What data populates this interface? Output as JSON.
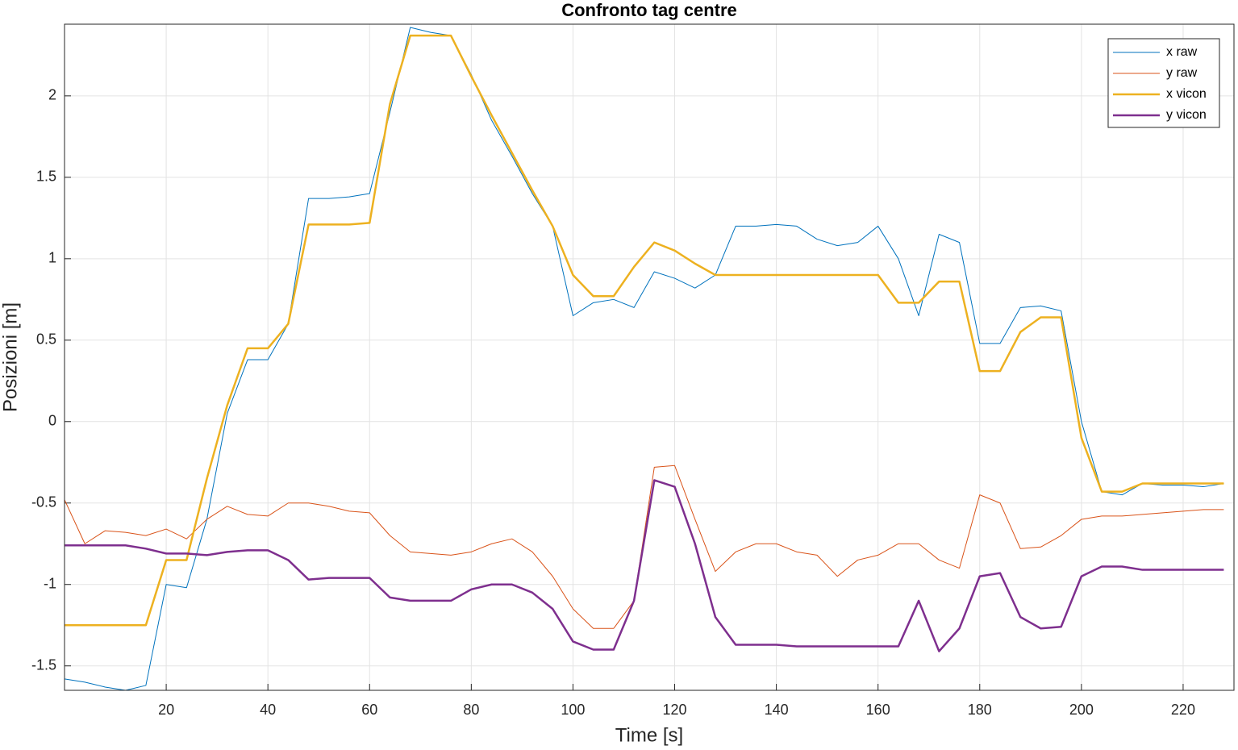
{
  "chart_data": {
    "type": "line",
    "title": "Confronto tag centre",
    "xlabel": "Time [s]",
    "ylabel": "Posizioni [m]",
    "x": [
      0,
      4,
      8,
      12,
      16,
      20,
      24,
      28,
      32,
      36,
      40,
      44,
      48,
      52,
      56,
      60,
      64,
      68,
      72,
      76,
      80,
      84,
      88,
      92,
      96,
      100,
      104,
      108,
      112,
      116,
      120,
      124,
      128,
      132,
      136,
      140,
      144,
      148,
      152,
      156,
      160,
      164,
      168,
      172,
      176,
      180,
      184,
      188,
      192,
      196,
      200,
      204,
      208,
      212,
      216,
      220,
      224,
      228
    ],
    "series": [
      {
        "name": "x raw",
        "color": "#0072bd",
        "width": 1,
        "values": [
          -1.58,
          -1.6,
          -1.63,
          -1.65,
          -1.62,
          -1.0,
          -1.02,
          -0.6,
          0.05,
          0.38,
          0.38,
          0.6,
          1.37,
          1.37,
          1.38,
          1.4,
          1.9,
          2.42,
          2.39,
          2.37,
          2.13,
          1.85,
          1.63,
          1.4,
          1.2,
          0.65,
          0.73,
          0.75,
          0.7,
          0.92,
          0.88,
          0.82,
          0.9,
          1.2,
          1.2,
          1.21,
          1.2,
          1.12,
          1.08,
          1.1,
          1.2,
          1.0,
          0.65,
          1.15,
          1.1,
          0.48,
          0.48,
          0.7,
          0.71,
          0.68,
          0.0,
          -0.43,
          -0.45,
          -0.38,
          -0.39,
          -0.39,
          -0.4,
          -0.38
        ]
      },
      {
        "name": "y raw",
        "color": "#d95319",
        "width": 1,
        "values": [
          -0.48,
          -0.75,
          -0.67,
          -0.68,
          -0.7,
          -0.66,
          -0.72,
          -0.6,
          -0.52,
          -0.57,
          -0.58,
          -0.5,
          -0.5,
          -0.52,
          -0.55,
          -0.56,
          -0.7,
          -0.8,
          -0.81,
          -0.82,
          -0.8,
          -0.75,
          -0.72,
          -0.8,
          -0.95,
          -1.15,
          -1.27,
          -1.27,
          -1.1,
          -0.28,
          -0.27,
          -0.6,
          -0.92,
          -0.8,
          -0.75,
          -0.75,
          -0.8,
          -0.82,
          -0.95,
          -0.85,
          -0.82,
          -0.75,
          -0.75,
          -0.85,
          -0.9,
          -0.45,
          -0.5,
          -0.78,
          -0.77,
          -0.7,
          -0.6,
          -0.58,
          -0.58,
          -0.57,
          -0.56,
          -0.55,
          -0.54,
          -0.54
        ]
      },
      {
        "name": "x vicon",
        "color": "#edb120",
        "width": 2.5,
        "values": [
          -1.25,
          -1.25,
          -1.25,
          -1.25,
          -1.25,
          -0.85,
          -0.85,
          -0.35,
          0.1,
          0.45,
          0.45,
          0.6,
          1.21,
          1.21,
          1.21,
          1.22,
          1.95,
          2.37,
          2.37,
          2.37,
          2.12,
          1.88,
          1.65,
          1.42,
          1.2,
          0.9,
          0.77,
          0.77,
          0.95,
          1.1,
          1.05,
          0.97,
          0.9,
          0.9,
          0.9,
          0.9,
          0.9,
          0.9,
          0.9,
          0.9,
          0.9,
          0.73,
          0.73,
          0.86,
          0.86,
          0.31,
          0.31,
          0.55,
          0.64,
          0.64,
          -0.1,
          -0.43,
          -0.43,
          -0.38,
          -0.38,
          -0.38,
          -0.38,
          -0.38
        ]
      },
      {
        "name": "y vicon",
        "color": "#7e2f8e",
        "width": 2.5,
        "values": [
          -0.76,
          -0.76,
          -0.76,
          -0.76,
          -0.78,
          -0.81,
          -0.81,
          -0.82,
          -0.8,
          -0.79,
          -0.79,
          -0.85,
          -0.97,
          -0.96,
          -0.96,
          -0.96,
          -1.08,
          -1.1,
          -1.1,
          -1.1,
          -1.03,
          -1.0,
          -1.0,
          -1.05,
          -1.15,
          -1.35,
          -1.4,
          -1.4,
          -1.1,
          -0.36,
          -0.4,
          -0.75,
          -1.2,
          -1.37,
          -1.37,
          -1.37,
          -1.38,
          -1.38,
          -1.38,
          -1.38,
          -1.38,
          -1.38,
          -1.1,
          -1.41,
          -1.27,
          -0.95,
          -0.93,
          -1.2,
          -1.27,
          -1.26,
          -0.95,
          -0.89,
          -0.89,
          -0.91,
          -0.91,
          -0.91,
          -0.91,
          -0.91
        ]
      }
    ],
    "xlim": [
      0,
      230
    ],
    "xticks": [
      20,
      40,
      60,
      80,
      100,
      120,
      140,
      160,
      180,
      200,
      220
    ],
    "ylim": [
      -1.65,
      2.44
    ],
    "yticks": [
      -1.5,
      -1,
      -0.5,
      0,
      0.5,
      1,
      1.5,
      2
    ],
    "grid": true,
    "legend": "northeast"
  }
}
